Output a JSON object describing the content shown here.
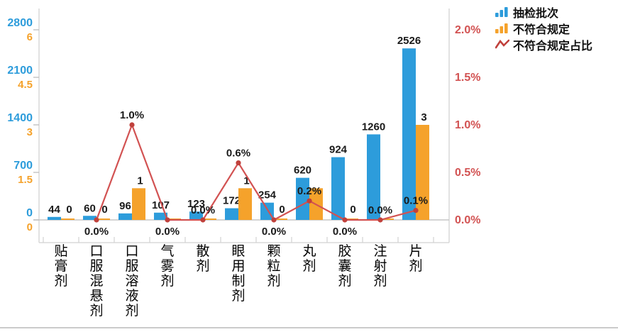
{
  "colors": {
    "bar_primary": "#2D9CDB",
    "bar_secondary": "#F5A22B",
    "line": "#D25252",
    "marker": "#C0413C",
    "axis_line": "#D2D2D2",
    "label_text": "#1A1A1A"
  },
  "legend": {
    "items": [
      {
        "label": "抽检批次",
        "icon": "blue-bars-icon",
        "type": "bars",
        "color": "#2D9CDB"
      },
      {
        "label": "不符合规定",
        "icon": "orange-bars-icon",
        "type": "bars",
        "color": "#F5A22B"
      },
      {
        "label": "不符合规定占比",
        "icon": "red-line-icon",
        "type": "line",
        "color": "#C0413C"
      }
    ]
  },
  "chart_data": {
    "type": "bar",
    "subtype": "combo-dual-axis-bar-line",
    "grid": false,
    "legend_position": "top-right",
    "categories": [
      "贴膏剂",
      "口服混悬剂",
      "口服溶液剂",
      "气雾剂",
      "散剂",
      "眼用制剂",
      "颗粒剂",
      "丸剂",
      "胶囊剂",
      "注射剂",
      "片剂"
    ],
    "series": [
      {
        "name": "抽检批次",
        "type": "bar",
        "axis": "left_primary",
        "color": "#2D9CDB",
        "values": [
          44,
          60,
          96,
          107,
          123,
          172,
          254,
          620,
          924,
          1260,
          2526
        ],
        "labels": [
          "44",
          "60",
          "96",
          "107",
          "123",
          "172",
          "254",
          "620",
          "924",
          "1260",
          "2526"
        ]
      },
      {
        "name": "不符合规定",
        "type": "bar",
        "axis": "left_secondary",
        "color": "#F5A22B",
        "values": [
          0,
          0,
          1,
          0,
          0,
          1,
          0,
          1,
          0,
          0,
          3
        ],
        "labels": [
          "0",
          "0",
          "1",
          null,
          null,
          "1",
          "0",
          null,
          "0",
          null,
          "3"
        ]
      },
      {
        "name": "不符合规定占比",
        "type": "line",
        "axis": "right",
        "color": "#D25252",
        "values": [
          null,
          0.0,
          1.0,
          0.0,
          0.0,
          0.6,
          0.0,
          0.2,
          0.0,
          0.0,
          0.1
        ],
        "labels": [
          null,
          "0.0%",
          "1.0%",
          "0.0%",
          "0.0%",
          "0.6%",
          "0.0%",
          "0.2%",
          "0.0%",
          "0.0%",
          "0.1%"
        ],
        "label_position": [
          null,
          "below",
          "above",
          "below",
          "above",
          "above",
          "below",
          "above",
          "below",
          "above",
          "above"
        ]
      }
    ],
    "axes": {
      "left_primary": {
        "min": 0,
        "max": 2800,
        "step": 700,
        "ticks": [
          "0",
          "700",
          "1400",
          "2100",
          "2800"
        ],
        "color": "#2D9CDB"
      },
      "left_secondary": {
        "min": 0,
        "max": 6,
        "step": 1.5,
        "ticks": [
          "0",
          "1.5",
          "3",
          "4.5",
          "6"
        ],
        "color": "#F5A22B"
      },
      "right": {
        "min": 0,
        "max": 2,
        "step": 0.5,
        "ticks": [
          "0.0%",
          "0.5%",
          "1.0%",
          "1.5%",
          "2.0%"
        ],
        "unit": "%",
        "color": "#D25252"
      }
    }
  }
}
